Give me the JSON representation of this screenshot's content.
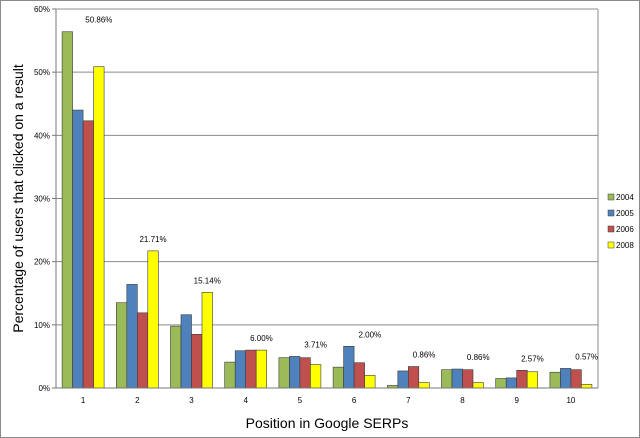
{
  "chart_data": {
    "type": "bar",
    "title": "",
    "xlabel": "Position in Google SERPs",
    "ylabel": "Percentage of users that clicked on a result",
    "ylim": [
      0,
      60
    ],
    "yticks": [
      "0%",
      "10%",
      "20%",
      "30%",
      "40%",
      "50%",
      "60%"
    ],
    "grid": true,
    "legend_position": "right",
    "categories": [
      "1",
      "2",
      "3",
      "4",
      "5",
      "6",
      "7",
      "8",
      "9",
      "10"
    ],
    "series": [
      {
        "name": "2004",
        "color": "#9bbb59",
        "values": [
          56.4,
          13.5,
          9.8,
          4.1,
          4.8,
          3.3,
          0.4,
          2.9,
          1.5,
          2.5
        ]
      },
      {
        "name": "2005",
        "color": "#4f81bd",
        "values": [
          44.0,
          16.4,
          11.6,
          5.9,
          5.0,
          6.6,
          2.7,
          3.0,
          1.6,
          3.1
        ]
      },
      {
        "name": "2006",
        "color": "#c0504d",
        "values": [
          42.3,
          11.9,
          8.5,
          6.0,
          4.8,
          4.0,
          3.4,
          2.9,
          2.8,
          2.9
        ]
      },
      {
        "name": "2008",
        "color": "#ffff00",
        "values": [
          50.86,
          21.71,
          15.14,
          6.0,
          3.71,
          2.0,
          0.86,
          0.86,
          2.57,
          0.57
        ]
      }
    ],
    "data_labels": [
      "50.86%",
      "21.71%",
      "15.14%",
      "6.00%",
      "3.71%",
      "2.00%",
      "0.86%",
      "0.86%",
      "2.57%",
      "0.57%"
    ]
  }
}
